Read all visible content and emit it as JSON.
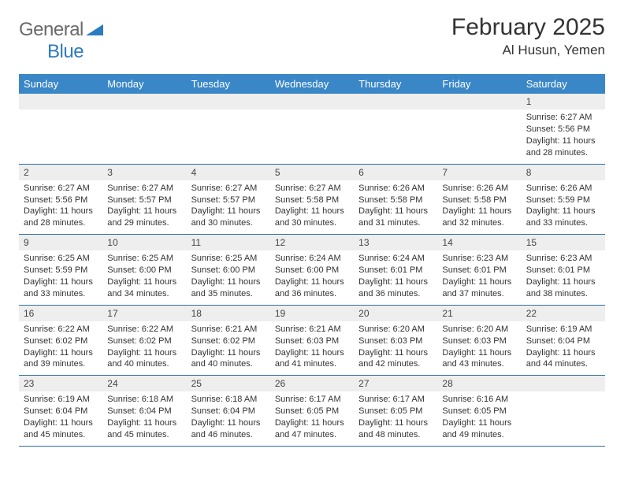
{
  "logo": {
    "general": "General",
    "blue": "Blue"
  },
  "title": "February 2025",
  "location": "Al Husun, Yemen",
  "colors": {
    "header_bg": "#3a87c7",
    "week_border": "#2f6ea5",
    "daynum_bg": "#eeeeee",
    "text": "#333333",
    "logo_gray": "#6a6a6a",
    "logo_blue": "#2d7bbf"
  },
  "day_headers": [
    "Sunday",
    "Monday",
    "Tuesday",
    "Wednesday",
    "Thursday",
    "Friday",
    "Saturday"
  ],
  "weeks": [
    [
      {
        "n": "",
        "sr": "",
        "ss": "",
        "d1": "",
        "d2": ""
      },
      {
        "n": "",
        "sr": "",
        "ss": "",
        "d1": "",
        "d2": ""
      },
      {
        "n": "",
        "sr": "",
        "ss": "",
        "d1": "",
        "d2": ""
      },
      {
        "n": "",
        "sr": "",
        "ss": "",
        "d1": "",
        "d2": ""
      },
      {
        "n": "",
        "sr": "",
        "ss": "",
        "d1": "",
        "d2": ""
      },
      {
        "n": "",
        "sr": "",
        "ss": "",
        "d1": "",
        "d2": ""
      },
      {
        "n": "1",
        "sr": "Sunrise: 6:27 AM",
        "ss": "Sunset: 5:56 PM",
        "d1": "Daylight: 11 hours",
        "d2": "and 28 minutes."
      }
    ],
    [
      {
        "n": "2",
        "sr": "Sunrise: 6:27 AM",
        "ss": "Sunset: 5:56 PM",
        "d1": "Daylight: 11 hours",
        "d2": "and 28 minutes."
      },
      {
        "n": "3",
        "sr": "Sunrise: 6:27 AM",
        "ss": "Sunset: 5:57 PM",
        "d1": "Daylight: 11 hours",
        "d2": "and 29 minutes."
      },
      {
        "n": "4",
        "sr": "Sunrise: 6:27 AM",
        "ss": "Sunset: 5:57 PM",
        "d1": "Daylight: 11 hours",
        "d2": "and 30 minutes."
      },
      {
        "n": "5",
        "sr": "Sunrise: 6:27 AM",
        "ss": "Sunset: 5:58 PM",
        "d1": "Daylight: 11 hours",
        "d2": "and 30 minutes."
      },
      {
        "n": "6",
        "sr": "Sunrise: 6:26 AM",
        "ss": "Sunset: 5:58 PM",
        "d1": "Daylight: 11 hours",
        "d2": "and 31 minutes."
      },
      {
        "n": "7",
        "sr": "Sunrise: 6:26 AM",
        "ss": "Sunset: 5:58 PM",
        "d1": "Daylight: 11 hours",
        "d2": "and 32 minutes."
      },
      {
        "n": "8",
        "sr": "Sunrise: 6:26 AM",
        "ss": "Sunset: 5:59 PM",
        "d1": "Daylight: 11 hours",
        "d2": "and 33 minutes."
      }
    ],
    [
      {
        "n": "9",
        "sr": "Sunrise: 6:25 AM",
        "ss": "Sunset: 5:59 PM",
        "d1": "Daylight: 11 hours",
        "d2": "and 33 minutes."
      },
      {
        "n": "10",
        "sr": "Sunrise: 6:25 AM",
        "ss": "Sunset: 6:00 PM",
        "d1": "Daylight: 11 hours",
        "d2": "and 34 minutes."
      },
      {
        "n": "11",
        "sr": "Sunrise: 6:25 AM",
        "ss": "Sunset: 6:00 PM",
        "d1": "Daylight: 11 hours",
        "d2": "and 35 minutes."
      },
      {
        "n": "12",
        "sr": "Sunrise: 6:24 AM",
        "ss": "Sunset: 6:00 PM",
        "d1": "Daylight: 11 hours",
        "d2": "and 36 minutes."
      },
      {
        "n": "13",
        "sr": "Sunrise: 6:24 AM",
        "ss": "Sunset: 6:01 PM",
        "d1": "Daylight: 11 hours",
        "d2": "and 36 minutes."
      },
      {
        "n": "14",
        "sr": "Sunrise: 6:23 AM",
        "ss": "Sunset: 6:01 PM",
        "d1": "Daylight: 11 hours",
        "d2": "and 37 minutes."
      },
      {
        "n": "15",
        "sr": "Sunrise: 6:23 AM",
        "ss": "Sunset: 6:01 PM",
        "d1": "Daylight: 11 hours",
        "d2": "and 38 minutes."
      }
    ],
    [
      {
        "n": "16",
        "sr": "Sunrise: 6:22 AM",
        "ss": "Sunset: 6:02 PM",
        "d1": "Daylight: 11 hours",
        "d2": "and 39 minutes."
      },
      {
        "n": "17",
        "sr": "Sunrise: 6:22 AM",
        "ss": "Sunset: 6:02 PM",
        "d1": "Daylight: 11 hours",
        "d2": "and 40 minutes."
      },
      {
        "n": "18",
        "sr": "Sunrise: 6:21 AM",
        "ss": "Sunset: 6:02 PM",
        "d1": "Daylight: 11 hours",
        "d2": "and 40 minutes."
      },
      {
        "n": "19",
        "sr": "Sunrise: 6:21 AM",
        "ss": "Sunset: 6:03 PM",
        "d1": "Daylight: 11 hours",
        "d2": "and 41 minutes."
      },
      {
        "n": "20",
        "sr": "Sunrise: 6:20 AM",
        "ss": "Sunset: 6:03 PM",
        "d1": "Daylight: 11 hours",
        "d2": "and 42 minutes."
      },
      {
        "n": "21",
        "sr": "Sunrise: 6:20 AM",
        "ss": "Sunset: 6:03 PM",
        "d1": "Daylight: 11 hours",
        "d2": "and 43 minutes."
      },
      {
        "n": "22",
        "sr": "Sunrise: 6:19 AM",
        "ss": "Sunset: 6:04 PM",
        "d1": "Daylight: 11 hours",
        "d2": "and 44 minutes."
      }
    ],
    [
      {
        "n": "23",
        "sr": "Sunrise: 6:19 AM",
        "ss": "Sunset: 6:04 PM",
        "d1": "Daylight: 11 hours",
        "d2": "and 45 minutes."
      },
      {
        "n": "24",
        "sr": "Sunrise: 6:18 AM",
        "ss": "Sunset: 6:04 PM",
        "d1": "Daylight: 11 hours",
        "d2": "and 45 minutes."
      },
      {
        "n": "25",
        "sr": "Sunrise: 6:18 AM",
        "ss": "Sunset: 6:04 PM",
        "d1": "Daylight: 11 hours",
        "d2": "and 46 minutes."
      },
      {
        "n": "26",
        "sr": "Sunrise: 6:17 AM",
        "ss": "Sunset: 6:05 PM",
        "d1": "Daylight: 11 hours",
        "d2": "and 47 minutes."
      },
      {
        "n": "27",
        "sr": "Sunrise: 6:17 AM",
        "ss": "Sunset: 6:05 PM",
        "d1": "Daylight: 11 hours",
        "d2": "and 48 minutes."
      },
      {
        "n": "28",
        "sr": "Sunrise: 6:16 AM",
        "ss": "Sunset: 6:05 PM",
        "d1": "Daylight: 11 hours",
        "d2": "and 49 minutes."
      },
      {
        "n": "",
        "sr": "",
        "ss": "",
        "d1": "",
        "d2": ""
      }
    ]
  ]
}
